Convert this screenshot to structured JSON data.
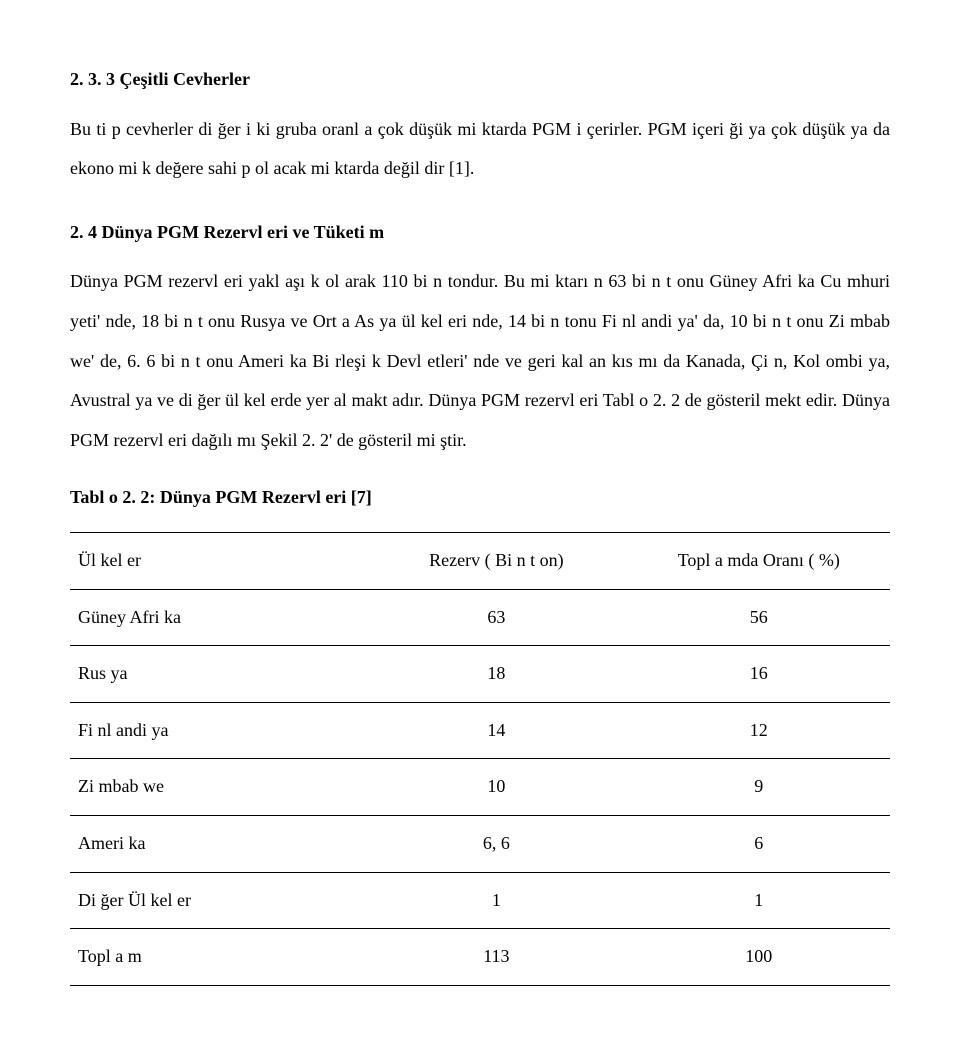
{
  "sec1": {
    "heading": "2. 3. 3 Çeşitli Cevherler",
    "p1": "Bu ti p cevherler di ğer i ki gruba oranl a çok düşük mi ktarda PGM i çerirler. PGM içeri ği ya çok düşük ya da ekono mi k değere sahi p ol acak mi ktarda değil dir [1]."
  },
  "sec2": {
    "heading": "2. 4 Dünya PGM Rezervl eri ve Tüketi m",
    "p1": "Dünya PGM rezervl eri yakl aşı k ol arak 110 bi n tondur. Bu mi ktarı n 63 bi n t onu Güney Afri ka Cu mhuri yeti' nde, 18 bi n t onu Rusya ve Ort a As ya ül kel eri nde, 14 bi n tonu Fi nl andi ya' da, 10 bi n t onu Zi mbab we' de, 6. 6 bi n t onu Ameri ka Bi rleşi k Devl etleri' nde ve geri kal an kıs mı da Kanada, Çi n, Kol ombi ya, Avustral ya ve di ğer ül kel erde yer al makt adır. Dünya PGM rezervl eri Tabl o 2. 2 de gösteril mekt edir. Dünya PGM rezervl eri dağılı mı Şekil 2. 2' de gösteril mi ştir."
  },
  "table": {
    "caption": "Tabl o 2. 2: Dünya PGM Rezervl eri [7]",
    "columns": [
      "Ül kel er",
      "Rezerv ( Bi n t on)",
      "Topl a mda Oranı ( %)"
    ],
    "rows": [
      [
        "Güney Afri ka",
        "63",
        "56"
      ],
      [
        "Rus ya",
        "18",
        "16"
      ],
      [
        "Fi nl andi ya",
        "14",
        "12"
      ],
      [
        "Zi mbab we",
        "10",
        "9"
      ],
      [
        "Ameri ka",
        "6, 6",
        "6"
      ],
      [
        "Di ğer Ül kel er",
        "1",
        "1"
      ],
      [
        "Topl a m",
        "113",
        "100"
      ]
    ]
  }
}
